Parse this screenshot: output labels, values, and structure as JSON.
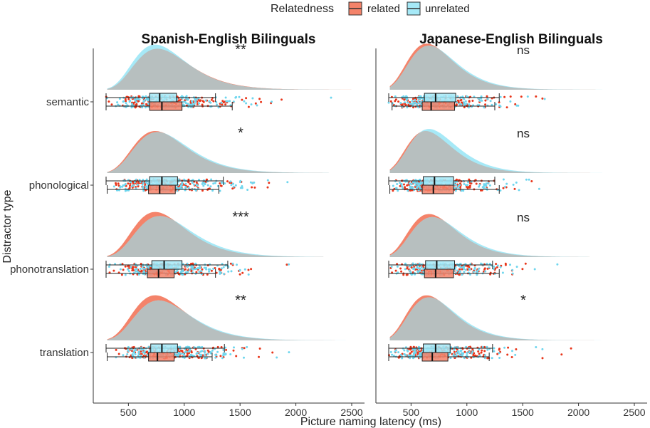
{
  "colors": {
    "related": "#F4836A",
    "unrelated": "#A6E9F7",
    "related_point": "#E8361B",
    "unrelated_point": "#6FD6EE",
    "overlap": "#B7BFBF",
    "axis": "#333333",
    "text": "#222222"
  },
  "chart_data": {
    "type": "raincloud",
    "xlabel": "Picture naming latency (ms)",
    "ylabel": "Distractor type",
    "xlim": [
      300,
      2500
    ],
    "x_ticks": [
      500,
      1000,
      1500,
      2000,
      2500
    ],
    "categories": [
      "semantic",
      "phonological",
      "phonotranslation",
      "translation"
    ],
    "legend": {
      "title": "Relatedness",
      "position": "top",
      "entries": [
        "related",
        "unrelated"
      ]
    },
    "grid": false,
    "panels": [
      {
        "title": "Spanish-English Bilinguals",
        "rows": [
          {
            "category": "semantic",
            "significance": "**",
            "related": {
              "mode": 760,
              "peak": 0.8,
              "tail_end": 2500,
              "whisker": [
                300,
                1430
              ],
              "q1": 690,
              "median": 800,
              "q3": 980
            },
            "unrelated": {
              "mode": 740,
              "peak": 0.88,
              "tail_end": 2400,
              "whisker": [
                300,
                1280
              ],
              "q1": 690,
              "median": 780,
              "q3": 930
            }
          },
          {
            "category": "phonological",
            "significance": "*",
            "related": {
              "mode": 740,
              "peak": 0.82,
              "tail_end": 2300,
              "whisker": [
                310,
                1310
              ],
              "q1": 680,
              "median": 780,
              "q3": 920
            },
            "unrelated": {
              "mode": 760,
              "peak": 0.8,
              "tail_end": 2300,
              "whisker": [
                300,
                1350
              ],
              "q1": 690,
              "median": 800,
              "q3": 940
            }
          },
          {
            "category": "phonotranslation",
            "significance": "***",
            "related": {
              "mode": 740,
              "peak": 0.88,
              "tail_end": 2250,
              "whisker": [
                300,
                1280
              ],
              "q1": 670,
              "median": 770,
              "q3": 910
            },
            "unrelated": {
              "mode": 780,
              "peak": 0.8,
              "tail_end": 2250,
              "whisker": [
                300,
                1390
              ],
              "q1": 710,
              "median": 820,
              "q3": 980
            }
          },
          {
            "category": "translation",
            "significance": "**",
            "related": {
              "mode": 740,
              "peak": 0.88,
              "tail_end": 2350,
              "whisker": [
                310,
                1250
              ],
              "q1": 680,
              "median": 760,
              "q3": 910
            },
            "unrelated": {
              "mode": 770,
              "peak": 0.78,
              "tail_end": 2450,
              "whisker": [
                300,
                1360
              ],
              "q1": 700,
              "median": 800,
              "q3": 940
            }
          }
        ]
      },
      {
        "title": "Japanese-English Bilinguals",
        "rows": [
          {
            "category": "semantic",
            "significance": "ns",
            "related": {
              "mode": 640,
              "peak": 0.9,
              "tail_end": 2350,
              "whisker": [
                330,
                1250
              ],
              "q1": 600,
              "median": 680,
              "q3": 890
            },
            "unrelated": {
              "mode": 660,
              "peak": 0.86,
              "tail_end": 2350,
              "whisker": [
                300,
                1290
              ],
              "q1": 620,
              "median": 720,
              "q3": 900
            }
          },
          {
            "category": "phonological",
            "significance": "ns",
            "related": {
              "mode": 630,
              "peak": 0.82,
              "tail_end": 2450,
              "whisker": [
                310,
                1290
              ],
              "q1": 600,
              "median": 700,
              "q3": 880
            },
            "unrelated": {
              "mode": 660,
              "peak": 0.86,
              "tail_end": 2450,
              "whisker": [
                300,
                1250
              ],
              "q1": 610,
              "median": 710,
              "q3": 880
            }
          },
          {
            "category": "phonotranslation",
            "significance": "ns",
            "related": {
              "mode": 660,
              "peak": 0.84,
              "tail_end": 2100,
              "whisker": [
                300,
                1290
              ],
              "q1": 620,
              "median": 720,
              "q3": 880
            },
            "unrelated": {
              "mode": 690,
              "peak": 0.78,
              "tail_end": 2100,
              "whisker": [
                300,
                1230
              ],
              "q1": 630,
              "median": 730,
              "q3": 890
            }
          },
          {
            "category": "translation",
            "significance": "*",
            "related": {
              "mode": 640,
              "peak": 0.88,
              "tail_end": 2450,
              "whisker": [
                300,
                1200
              ],
              "q1": 600,
              "median": 690,
              "q3": 830
            },
            "unrelated": {
              "mode": 660,
              "peak": 0.84,
              "tail_end": 2350,
              "whisker": [
                300,
                1230
              ],
              "q1": 610,
              "median": 720,
              "q3": 850
            }
          }
        ]
      }
    ]
  }
}
